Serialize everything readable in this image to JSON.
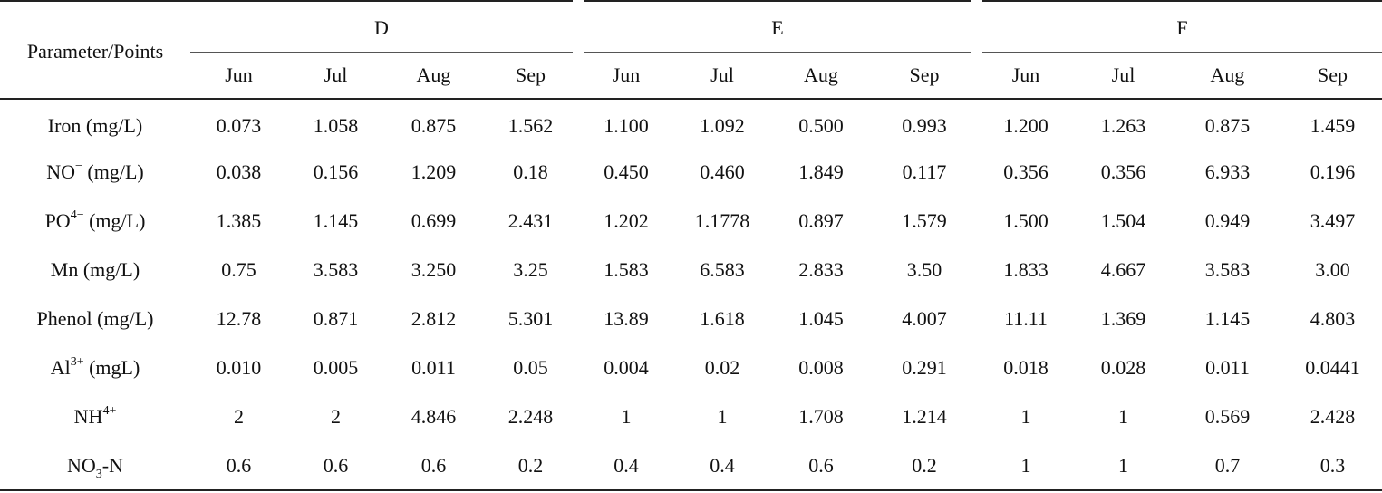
{
  "table": {
    "corner_label": "Parameter/Points",
    "groups": [
      "D",
      "E",
      "F"
    ],
    "months": [
      "Jun",
      "Jul",
      "Aug",
      "Sep",
      "Jun",
      "Jul",
      "Aug",
      "Sep",
      "Jun",
      "Jul",
      "Aug",
      "Sep"
    ],
    "rows": [
      {
        "label_main": "Iron (mg/L)",
        "values": [
          "0.073",
          "1.058",
          "0.875",
          "1.562",
          "1.100",
          "1.092",
          "0.500",
          "0.993",
          "1.200",
          "1.263",
          "0.875",
          "1.459"
        ]
      },
      {
        "label_pre": "NO",
        "label_sup": "−",
        "label_post": " (mg/L)",
        "values": [
          "0.038",
          "0.156",
          "1.209",
          "0.18",
          "0.450",
          "0.460",
          "1.849",
          "0.117",
          "0.356",
          "0.356",
          "6.933",
          "0.196"
        ]
      },
      {
        "label_pre": "PO",
        "label_sup": "4−",
        "label_post": " (mg/L)",
        "values": [
          "1.385",
          "1.145",
          "0.699",
          "2.431",
          "1.202",
          "1.1778",
          "0.897",
          "1.579",
          "1.500",
          "1.504",
          "0.949",
          "3.497"
        ]
      },
      {
        "label_main": "Mn (mg/L)",
        "values": [
          "0.75",
          "3.583",
          "3.250",
          "3.25",
          "1.583",
          "6.583",
          "2.833",
          "3.50",
          "1.833",
          "4.667",
          "3.583",
          "3.00"
        ]
      },
      {
        "label_main": "Phenol (mg/L)",
        "values": [
          "12.78",
          "0.871",
          "2.812",
          "5.301",
          "13.89",
          "1.618",
          "1.045",
          "4.007",
          "11.11",
          "1.369",
          "1.145",
          "4.803"
        ]
      },
      {
        "label_pre": "Al",
        "label_sup": "3+",
        "label_post": " (mgL)",
        "values": [
          "0.010",
          "0.005",
          "0.011",
          "0.05",
          "0.004",
          "0.02",
          "0.008",
          "0.291",
          "0.018",
          "0.028",
          "0.011",
          "0.0441"
        ]
      },
      {
        "label_pre": "NH",
        "label_sup": "4+",
        "label_post": "",
        "values": [
          "2",
          "2",
          "4.846",
          "2.248",
          "1",
          "1",
          "1.708",
          "1.214",
          "1",
          "1",
          "0.569",
          "2.428"
        ]
      },
      {
        "label_pre": "NO",
        "label_sub": "3",
        "label_post": "-N",
        "values": [
          "0.6",
          "0.6",
          "0.6",
          "0.2",
          "0.4",
          "0.4",
          "0.6",
          "0.2",
          "1",
          "1",
          "0.7",
          "0.3"
        ]
      }
    ]
  }
}
